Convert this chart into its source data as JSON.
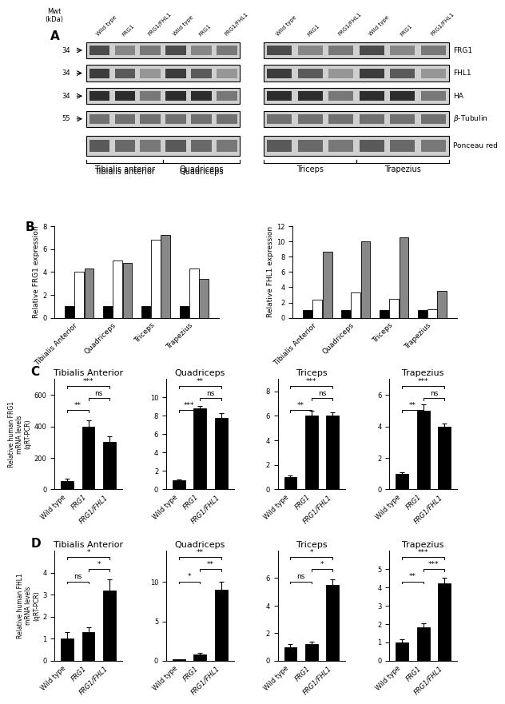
{
  "panel_A": {
    "blot_labels": [
      "FRG1",
      "FHL1",
      "HA",
      "β-Tubulin",
      "Ponceau red"
    ],
    "mwt_labels": [
      "34",
      "34",
      "34",
      "55"
    ],
    "col_labels_left": [
      "Wild type",
      "FRG1",
      "FRG1/FHL1",
      "Wild type",
      "FRG1",
      "FRG1/FHL1"
    ],
    "col_labels_right": [
      "Wild type",
      "FRG1",
      "FRG1/FHL1",
      "Wild type",
      "FRG1",
      "FRG1/FHL1"
    ],
    "tissue_labels_left": [
      "Tibialis anterior",
      "Quadriceps"
    ],
    "tissue_labels_right": [
      "Triceps",
      "Trapezius"
    ]
  },
  "panel_B_left": {
    "title": "",
    "ylabel": "Relative FRG1 expression",
    "categories": [
      "Tibialis Anterior",
      "Quadriceps",
      "Triceps",
      "Trapezius"
    ],
    "wildtype": [
      1.0,
      1.0,
      1.0,
      1.0
    ],
    "frg1": [
      4.0,
      5.0,
      6.8,
      4.3
    ],
    "frg1_fhl1": [
      4.3,
      4.8,
      7.2,
      3.4
    ],
    "ylim": [
      0,
      8
    ],
    "yticks": [
      0,
      2,
      4,
      6,
      8
    ]
  },
  "panel_B_right": {
    "title": "",
    "ylabel": "Relative FHL1 expression",
    "categories": [
      "Tibialis Anterior",
      "Quadriceps",
      "Triceps",
      "Trapezius"
    ],
    "wildtype": [
      1.0,
      1.0,
      1.0,
      1.0
    ],
    "frg1": [
      2.4,
      3.3,
      2.5,
      1.1
    ],
    "frg1_fhl1": [
      8.6,
      10.0,
      10.5,
      3.5
    ],
    "ylim": [
      0,
      12
    ],
    "yticks": [
      0,
      2,
      4,
      6,
      8,
      10,
      12
    ]
  },
  "panel_C": {
    "subplots": [
      {
        "title": "Tibialis Anterior",
        "ylabel": "Relative human FRG1\nmRNA levels\n(qRT-PCR)",
        "wildtype_val": 50,
        "wildtype_err": 15,
        "frg1_val": 400,
        "frg1_err": 40,
        "frg1fhl1_val": 300,
        "frg1fhl1_err": 35,
        "ylim": [
          0,
          700
        ],
        "yticks": [
          0,
          200,
          400,
          600
        ],
        "sig_wt_frg1": "**",
        "sig_wt_frg1fhl1": "***",
        "sig_frg1_frg1fhl1": "ns"
      },
      {
        "title": "Quadriceps",
        "ylabel": "Relative human FRG1\nmRNA levels\n(qRT-PCR)",
        "wildtype_val": 1.0,
        "wildtype_err": 0.1,
        "frg1_val": 8.8,
        "frg1_err": 0.3,
        "frg1fhl1_val": 7.8,
        "frg1fhl1_err": 0.5,
        "ylim": [
          0,
          12
        ],
        "yticks": [
          0,
          2,
          4,
          6,
          8,
          10
        ],
        "sig_wt_frg1": "***",
        "sig_wt_frg1fhl1": "**",
        "sig_frg1_frg1fhl1": "ns"
      },
      {
        "title": "Triceps",
        "ylabel": "Relative human FRG1\nmRNA levels\n(qRT-PCR)",
        "wildtype_val": 1.0,
        "wildtype_err": 0.1,
        "frg1_val": 6.0,
        "frg1_err": 0.4,
        "frg1fhl1_val": 6.0,
        "frg1fhl1_err": 0.3,
        "ylim": [
          0,
          9
        ],
        "yticks": [
          0,
          2,
          4,
          6,
          8
        ],
        "sig_wt_frg1": "**",
        "sig_wt_frg1fhl1": "***",
        "sig_frg1_frg1fhl1": "ns"
      },
      {
        "title": "Trapezius",
        "ylabel": "Relative human FRG1\nmRNA levels\n(qRT-PCR)",
        "wildtype_val": 1.0,
        "wildtype_err": 0.1,
        "frg1_val": 5.0,
        "frg1_err": 0.4,
        "frg1fhl1_val": 4.0,
        "frg1fhl1_err": 0.2,
        "ylim": [
          0,
          7
        ],
        "yticks": [
          0,
          2,
          4,
          6
        ],
        "sig_wt_frg1": "**",
        "sig_wt_frg1fhl1": "***",
        "sig_frg1_frg1fhl1": "ns"
      }
    ]
  },
  "panel_D": {
    "subplots": [
      {
        "title": "Tibialis Anterior",
        "ylabel": "Relative human FHL1\nmRNA levels\n(qRT-PCR)",
        "wildtype_val": 1.0,
        "wildtype_err": 0.3,
        "frg1_val": 1.3,
        "frg1_err": 0.2,
        "frg1fhl1_val": 3.2,
        "frg1fhl1_err": 0.5,
        "ylim": [
          0,
          5
        ],
        "yticks": [
          0,
          1,
          2,
          3,
          4
        ],
        "sig_wt_frg1": "ns",
        "sig_wt_frg1fhl1": "*",
        "sig_frg1_frg1fhl1": "*"
      },
      {
        "title": "Quadriceps",
        "ylabel": "Relative human FHL1\nmRNA levels\n(qRT-PCR)",
        "wildtype_val": 0.15,
        "wildtype_err": 0.05,
        "frg1_val": 0.8,
        "frg1_err": 0.15,
        "frg1fhl1_val": 9.0,
        "frg1fhl1_err": 1.0,
        "ylim": [
          0,
          14
        ],
        "yticks": [
          0,
          5,
          10
        ],
        "sig_wt_frg1": "*",
        "sig_wt_frg1fhl1": "**",
        "sig_frg1_frg1fhl1": "**"
      },
      {
        "title": "Triceps",
        "ylabel": "Relative human FHL1\nmRNA levels\n(qRT-PCR)",
        "wildtype_val": 1.0,
        "wildtype_err": 0.2,
        "frg1_val": 1.2,
        "frg1_err": 0.2,
        "frg1fhl1_val": 5.5,
        "frg1fhl1_err": 0.4,
        "ylim": [
          0,
          8
        ],
        "yticks": [
          0,
          2,
          4,
          6
        ],
        "sig_wt_frg1": "ns",
        "sig_wt_frg1fhl1": "*",
        "sig_frg1_frg1fhl1": "*"
      },
      {
        "title": "Trapezius",
        "ylabel": "Relative human FHL1\nmRNA levels\n(qRT-PCR)",
        "wildtype_val": 1.0,
        "wildtype_err": 0.15,
        "frg1_val": 1.8,
        "frg1_err": 0.25,
        "frg1fhl1_val": 4.2,
        "frg1fhl1_err": 0.3,
        "ylim": [
          0,
          6
        ],
        "yticks": [
          0,
          1,
          2,
          3,
          4,
          5
        ],
        "sig_wt_frg1": "**",
        "sig_wt_frg1fhl1": "***",
        "sig_frg1_frg1fhl1": "***"
      }
    ]
  },
  "colors": {
    "black": "#000000",
    "white": "#ffffff",
    "gray": "#888888",
    "light_gray": "#cccccc"
  },
  "bar_colors": [
    "#000000",
    "#ffffff",
    "#888888"
  ],
  "bar_edgecolor": "#000000"
}
